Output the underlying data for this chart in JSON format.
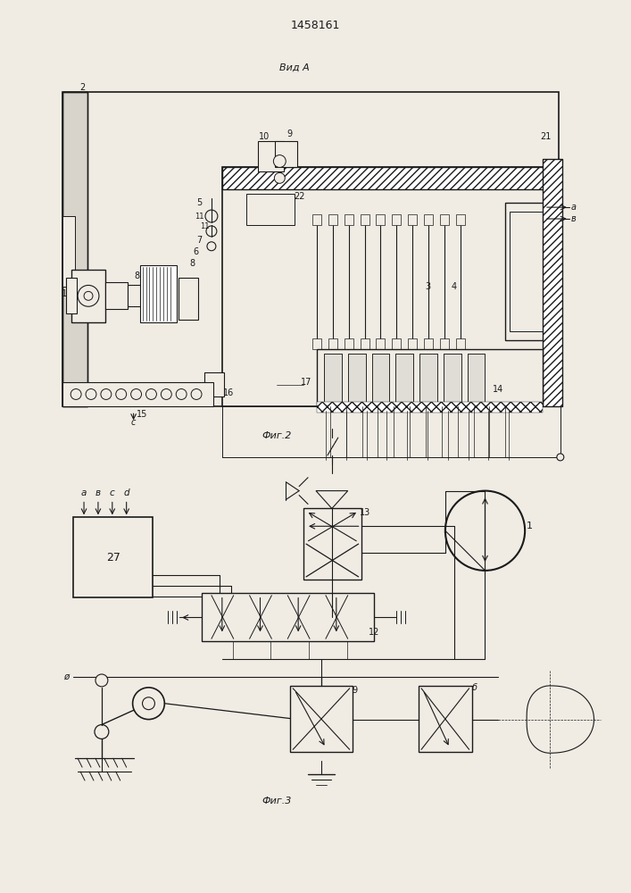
{
  "title": "1458161",
  "fig2_label": "Фиг.2",
  "fig3_label": "Фиг.3",
  "vida_label": "Вид А",
  "bg_color": "#f0ece4",
  "line_color": "#1a1a1a"
}
